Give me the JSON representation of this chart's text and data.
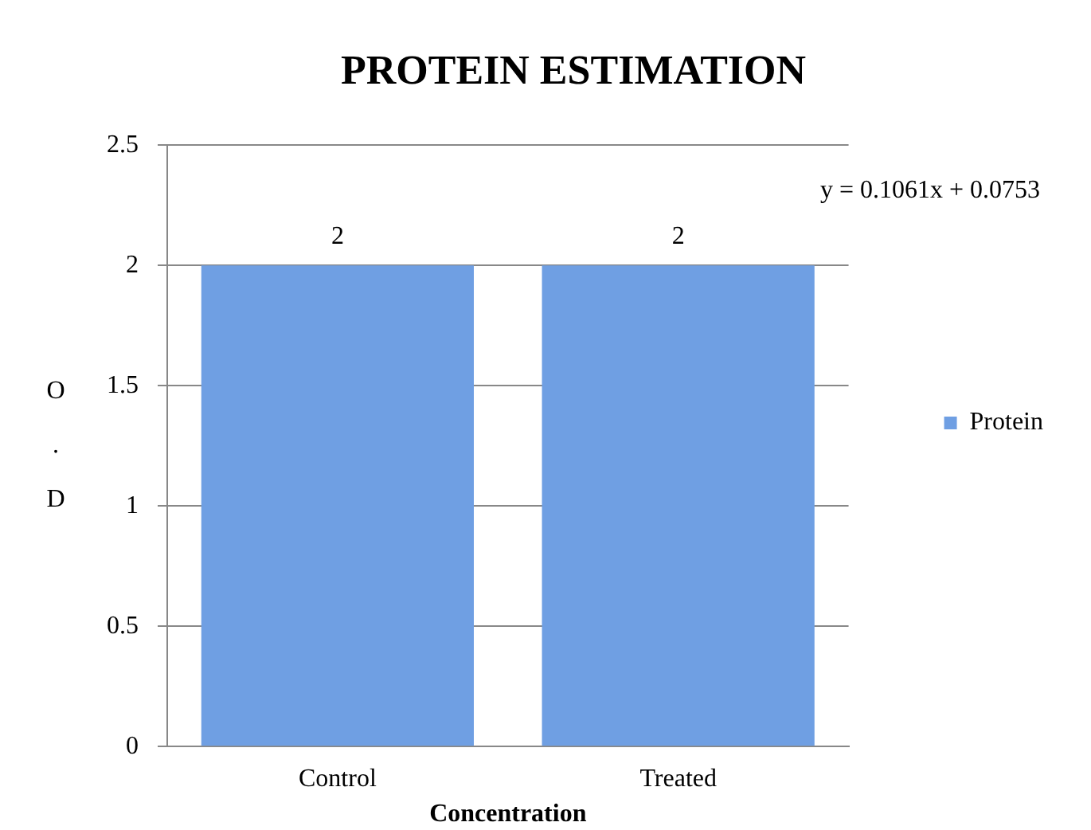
{
  "chart_data": {
    "type": "bar",
    "title": "PROTEIN ESTIMATION",
    "xlabel": "Concentration",
    "ylabel": "O.D",
    "categories": [
      "Control",
      "Treated"
    ],
    "series": [
      {
        "name": "Protein",
        "color": "#6f9fe3",
        "values": [
          2,
          2
        ]
      }
    ],
    "ylim": [
      0,
      2.5
    ],
    "yticks": [
      0,
      0.5,
      1,
      1.5,
      2,
      2.5
    ],
    "grid": "y",
    "legend": "right",
    "data_labels": true,
    "annotations": [
      "y = 0.1061x + 0.0753"
    ]
  }
}
